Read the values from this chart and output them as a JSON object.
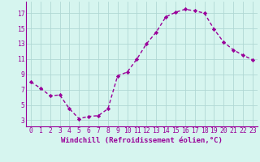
{
  "x": [
    0,
    1,
    2,
    3,
    4,
    5,
    6,
    7,
    8,
    9,
    10,
    11,
    12,
    13,
    14,
    15,
    16,
    17,
    18,
    19,
    20,
    21,
    22,
    23
  ],
  "y": [
    8.0,
    7.2,
    6.2,
    6.3,
    4.5,
    3.2,
    3.5,
    3.6,
    4.5,
    8.8,
    9.3,
    11.0,
    13.0,
    14.5,
    16.5,
    17.1,
    17.5,
    17.3,
    17.0,
    14.9,
    13.2,
    12.2,
    11.5,
    10.9
  ],
  "line_color": "#990099",
  "marker": "D",
  "markersize": 2.2,
  "linewidth": 1.0,
  "bg_color": "#d6f5ef",
  "grid_color": "#b0d8d4",
  "xlabel": "Windchill (Refroidissement éolien,°C)",
  "xlabel_fontsize": 6.5,
  "tick_fontsize": 5.8,
  "yticks": [
    3,
    5,
    7,
    9,
    11,
    13,
    15,
    17
  ],
  "ylim": [
    2.2,
    18.5
  ],
  "xlim": [
    -0.5,
    23.5
  ],
  "xticks": [
    0,
    1,
    2,
    3,
    4,
    5,
    6,
    7,
    8,
    9,
    10,
    11,
    12,
    13,
    14,
    15,
    16,
    17,
    18,
    19,
    20,
    21,
    22,
    23
  ]
}
